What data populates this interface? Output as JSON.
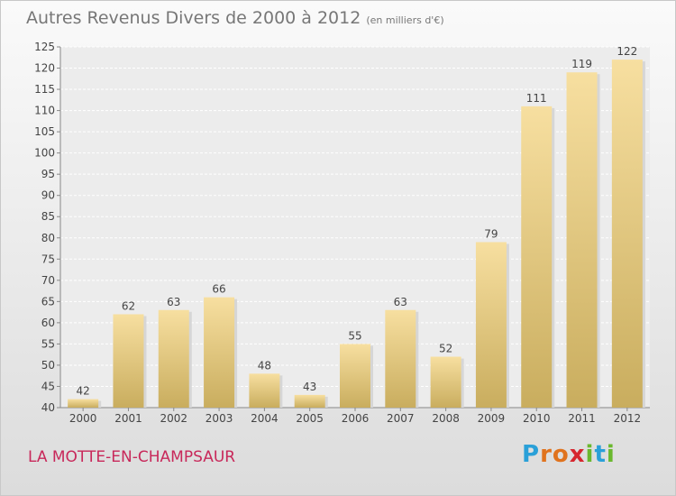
{
  "header": {
    "title": "Autres Revenus Divers de 2000 à 2012",
    "unit": "(en milliers d'€)"
  },
  "footer": {
    "city": "LA MOTTE-EN-CHAMPSAUR",
    "logo": "Proxiti"
  },
  "colors": {
    "bar_light": "#f7dfa0",
    "bar_dark": "#c9ad5e",
    "city_text": "#c8285a",
    "title_text": "#777777",
    "logo_letters": [
      "#2aa0d8",
      "#e0731e",
      "#e0731e",
      "#d6262e",
      "#6ab82e",
      "#2aa0d8",
      "#6ab82e"
    ]
  },
  "chart_data": {
    "type": "bar",
    "title": "Autres Revenus Divers de 2000 à 2012",
    "xlabel": "",
    "ylabel": "",
    "categories": [
      "2000",
      "2001",
      "2002",
      "2003",
      "2004",
      "2005",
      "2006",
      "2007",
      "2008",
      "2009",
      "2010",
      "2011",
      "2012"
    ],
    "values": [
      42,
      62,
      63,
      66,
      48,
      43,
      55,
      63,
      52,
      79,
      111,
      119,
      122
    ],
    "ylim": [
      40,
      125
    ],
    "yticks": [
      40,
      45,
      50,
      55,
      60,
      65,
      70,
      75,
      80,
      85,
      90,
      95,
      100,
      105,
      110,
      115,
      120,
      125
    ],
    "grid": true,
    "legend": "none"
  }
}
